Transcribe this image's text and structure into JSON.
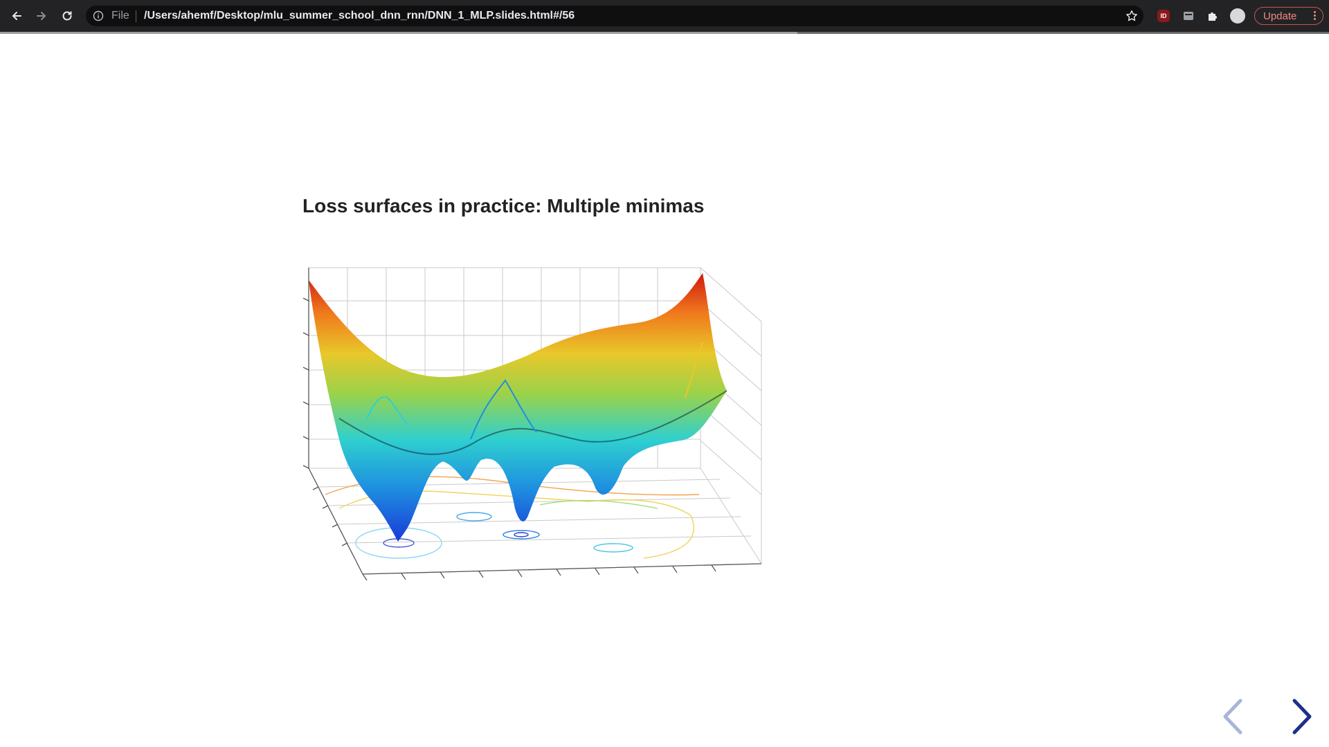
{
  "browser": {
    "back_icon": "arrow-left-icon",
    "forward_icon": "arrow-right-icon",
    "reload_icon": "reload-icon",
    "address": {
      "scheme_label": "File",
      "url": "/Users/ahemf/Desktop/mlu_summer_school_dnn_rnn/DNN_1_MLP.slides.html#/56",
      "info_icon": "info-icon",
      "bookmark_icon": "star-icon"
    },
    "extensions": {
      "ublock_badge": "ID",
      "icons": [
        "ublock-icon",
        "capture-icon",
        "puzzle-icon",
        "profile-avatar-icon"
      ]
    },
    "update_label": "Update",
    "slide_progress": 0.6
  },
  "slide": {
    "title": "Loss surfaces in practice: Multiple minimas",
    "figure_icon": "3d-loss-surface-plot",
    "prev_icon": "chevron-left-icon",
    "next_icon": "chevron-right-icon"
  },
  "colors": {
    "toolbar": "#232325",
    "update_accent": "#f08a82",
    "nav_arrow_active": "#1f2f8a",
    "nav_arrow_disabled": "#a9b4d9"
  }
}
